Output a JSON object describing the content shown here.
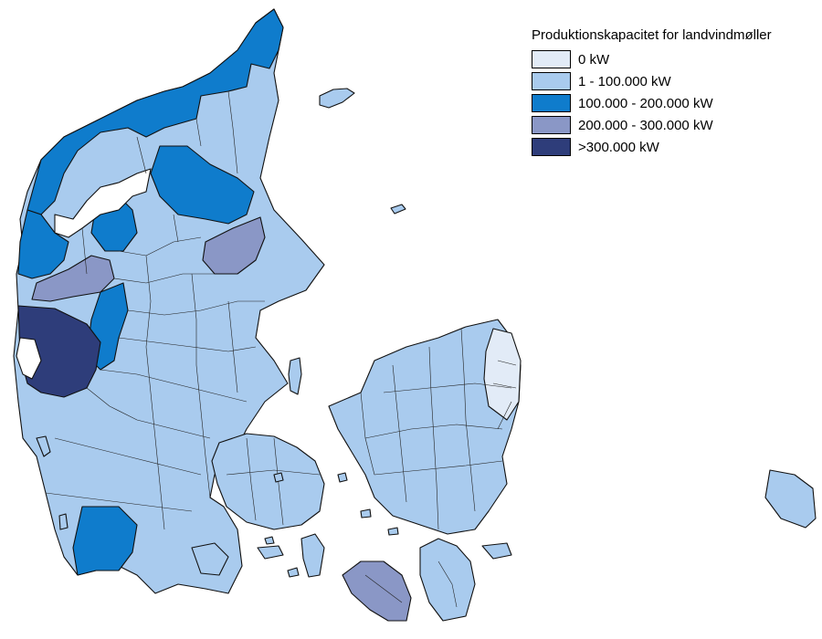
{
  "legend": {
    "title": "Produktionskapacitet for landvindmøller",
    "items": [
      {
        "label": "0 kW",
        "color": "#e2ebf7"
      },
      {
        "label": "1 - 100.000 kW",
        "color": "#a9cbee"
      },
      {
        "label": "100.000 - 200.000 kW",
        "color": "#0f7ccc"
      },
      {
        "label": "200.000 - 300.000 kW",
        "color": "#8a97c6"
      },
      {
        "label": ">300.000 kW",
        "color": "#2e3d7a"
      }
    ]
  }
}
